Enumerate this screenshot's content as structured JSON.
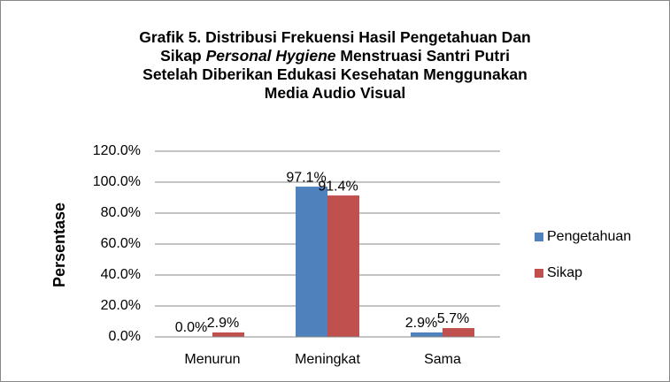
{
  "chart_data": {
    "type": "bar",
    "title": [
      {
        "text": "Grafik 5. Distribusi Frekuensi Hasil Pengetahuan Dan Sikap "
      },
      {
        "text": "Personal Hygiene",
        "italic": true
      },
      {
        "text": " Menstruasi Santri Putri Setelah Diberikan Edukasi Kesehatan Menggunakan Media Audio Visual"
      }
    ],
    "y_label": "Persentase",
    "categories": [
      "Menurun",
      "Meningkat",
      "Sama"
    ],
    "series": [
      {
        "name": "Pengetahuan",
        "color": "#4f81bd",
        "values": [
          0.0,
          97.1,
          2.9
        ],
        "value_labels": [
          "0.0%",
          "97.1%",
          "2.9%"
        ]
      },
      {
        "name": "Sikap",
        "color": "#c0504d",
        "values": [
          2.9,
          91.4,
          5.7
        ],
        "value_labels": [
          "2.9%",
          "91.4%",
          "5.7%"
        ]
      }
    ],
    "ylim": [
      0,
      120
    ],
    "yticks": [
      {
        "value": 0,
        "label": "0.0%"
      },
      {
        "value": 20,
        "label": "20.0%"
      },
      {
        "value": 40,
        "label": "40.0%"
      },
      {
        "value": 60,
        "label": "60.0%"
      },
      {
        "value": 80,
        "label": "80.0%"
      },
      {
        "value": 100,
        "label": "100.0%"
      },
      {
        "value": 120,
        "label": "120.0%"
      }
    ],
    "grid": true,
    "legend": "right"
  }
}
